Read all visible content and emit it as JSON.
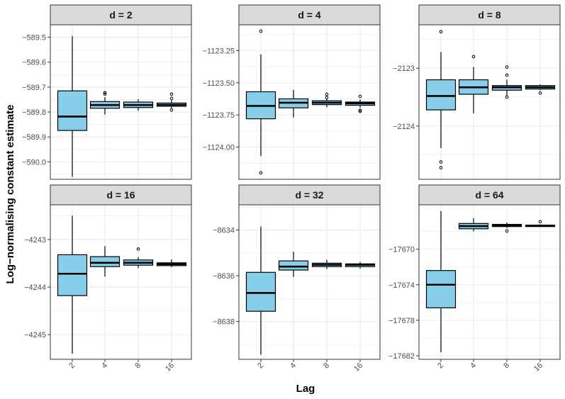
{
  "colors": {
    "box_fill": "#87CEEB",
    "strip_fill": "#D9D9D9",
    "grid": "#EBEBEB",
    "border": "#333333",
    "text": "#4D4D4D"
  },
  "chart_data": {
    "type": "boxplot",
    "facet_by": "d",
    "xlabel": "Lag",
    "ylabel": "Log−normalising constant estimate",
    "categories": [
      "2",
      "4",
      "8",
      "16"
    ],
    "panels": [
      {
        "title": "d = 2",
        "ylim": [
          -590.07,
          -589.45
        ],
        "yticks": [
          -589.5,
          -589.6,
          -589.7,
          -589.8,
          -589.9,
          -590.0
        ],
        "ytick_labels": [
          "−589.5",
          "−589.6",
          "−589.7",
          "−589.8",
          "−589.9",
          "−590.0"
        ],
        "boxes": [
          {
            "lag": "2",
            "min": -590.06,
            "q1": -589.874,
            "median": -589.818,
            "q3": -589.715,
            "max": -589.495,
            "outliers": []
          },
          {
            "lag": "4",
            "min": -589.81,
            "q1": -589.785,
            "median": -589.772,
            "q3": -589.758,
            "max": -589.74,
            "outliers": [
              -589.722,
              -589.728
            ]
          },
          {
            "lag": "8",
            "min": -589.795,
            "q1": -589.782,
            "median": -589.772,
            "q3": -589.76,
            "max": -589.748,
            "outliers": []
          },
          {
            "lag": "16",
            "min": -589.785,
            "q1": -589.777,
            "median": -589.771,
            "q3": -589.764,
            "max": -589.752,
            "outliers": [
              -589.728,
              -589.745,
              -589.792
            ]
          }
        ]
      },
      {
        "title": "d = 4",
        "ylim": [
          -1124.25,
          -1123.05
        ],
        "yticks": [
          -1123.25,
          -1123.5,
          -1123.75,
          -1124.0
        ],
        "ytick_labels": [
          "−1123.25",
          "−1123.50",
          "−1123.75",
          "−1124.00"
        ],
        "boxes": [
          {
            "lag": "2",
            "min": -1124.07,
            "q1": -1123.78,
            "median": -1123.68,
            "q3": -1123.57,
            "max": -1123.28,
            "outliers": [
              -1123.1,
              -1124.2
            ]
          },
          {
            "lag": "4",
            "min": -1123.77,
            "q1": -1123.695,
            "median": -1123.655,
            "q3": -1123.625,
            "max": -1123.555,
            "outliers": []
          },
          {
            "lag": "8",
            "min": -1123.69,
            "q1": -1123.67,
            "median": -1123.655,
            "q3": -1123.64,
            "max": -1123.625,
            "outliers": [
              -1123.59,
              -1123.615
            ]
          },
          {
            "lag": "16",
            "min": -1123.695,
            "q1": -1123.675,
            "median": -1123.66,
            "q3": -1123.65,
            "max": -1123.63,
            "outliers": [
              -1123.605,
              -1123.715,
              -1123.722
            ]
          }
        ]
      },
      {
        "title": "d = 8",
        "ylim": [
          -2124.92,
          -2122.25
        ],
        "yticks": [
          -2123,
          -2124
        ],
        "ytick_labels": [
          "−2123",
          "−2124"
        ],
        "boxes": [
          {
            "lag": "2",
            "min": -2124.38,
            "q1": -2123.72,
            "median": -2123.48,
            "q3": -2123.2,
            "max": -2122.72,
            "outliers": [
              -2122.37,
              -2124.62,
              -2124.72
            ]
          },
          {
            "lag": "4",
            "min": -2123.78,
            "q1": -2123.45,
            "median": -2123.33,
            "q3": -2123.2,
            "max": -2122.98,
            "outliers": [
              -2122.8
            ]
          },
          {
            "lag": "8",
            "min": -2123.48,
            "q1": -2123.38,
            "median": -2123.33,
            "q3": -2123.3,
            "max": -2123.2,
            "outliers": [
              -2122.98,
              -2123.12,
              -2123.5
            ]
          },
          {
            "lag": "16",
            "min": -2123.38,
            "q1": -2123.36,
            "median": -2123.33,
            "q3": -2123.3,
            "max": -2123.28,
            "outliers": [
              -2123.43
            ]
          }
        ]
      },
      {
        "title": "d = 16",
        "ylim": [
          -4245.52,
          -4242.27
        ],
        "yticks": [
          -4243,
          -4244,
          -4245
        ],
        "ytick_labels": [
          "−4243",
          "−4244",
          "−4245"
        ],
        "boxes": [
          {
            "lag": "2",
            "min": -4245.4,
            "q1": -4244.18,
            "median": -4243.72,
            "q3": -4243.32,
            "max": -4242.5,
            "outliers": []
          },
          {
            "lag": "4",
            "min": -4243.78,
            "q1": -4243.57,
            "median": -4243.49,
            "q3": -4243.36,
            "max": -4243.14,
            "outliers": []
          },
          {
            "lag": "8",
            "min": -4243.6,
            "q1": -4243.54,
            "median": -4243.49,
            "q3": -4243.43,
            "max": -4243.37,
            "outliers": [
              -4243.2
            ]
          },
          {
            "lag": "16",
            "min": -4243.58,
            "q1": -4243.55,
            "median": -4243.52,
            "q3": -4243.49,
            "max": -4243.42,
            "outliers": []
          }
        ]
      },
      {
        "title": "d = 32",
        "ylim": [
          -8639.65,
          -8632.9
        ],
        "yticks": [
          -8634,
          -8636,
          -8638
        ],
        "ytick_labels": [
          "−8634",
          "−8636",
          "−8638"
        ],
        "boxes": [
          {
            "lag": "2",
            "min": -8639.45,
            "q1": -8637.55,
            "median": -8636.75,
            "q3": -8635.85,
            "max": -8633.85,
            "outliers": []
          },
          {
            "lag": "4",
            "min": -8636.05,
            "q1": -8635.75,
            "median": -8635.6,
            "q3": -8635.35,
            "max": -8634.95,
            "outliers": []
          },
          {
            "lag": "8",
            "min": -8635.7,
            "q1": -8635.6,
            "median": -8635.52,
            "q3": -8635.45,
            "max": -8635.3,
            "outliers": []
          },
          {
            "lag": "16",
            "min": -8635.68,
            "q1": -8635.6,
            "median": -8635.52,
            "q3": -8635.48,
            "max": -8635.4,
            "outliers": []
          }
        ]
      },
      {
        "title": "d = 64",
        "ylim": [
          -17682.4,
          -17665.0
        ],
        "yticks": [
          -17670,
          -17674,
          -17678,
          -17682
        ],
        "ytick_labels": [
          "−17670",
          "−17674",
          "−17678",
          "−17682"
        ],
        "boxes": [
          {
            "lag": "2",
            "min": -17681.6,
            "q1": -17676.6,
            "median": -17674.0,
            "q3": -17672.4,
            "max": -17665.7,
            "outliers": []
          },
          {
            "lag": "4",
            "min": -17668.0,
            "q1": -17667.7,
            "median": -17667.4,
            "q3": -17667.1,
            "max": -17666.5,
            "outliers": []
          },
          {
            "lag": "8",
            "min": -17667.6,
            "q1": -17667.45,
            "median": -17667.35,
            "q3": -17667.2,
            "max": -17667.0,
            "outliers": [
              -17667.95
            ]
          },
          {
            "lag": "16",
            "min": -17667.5,
            "q1": -17667.45,
            "median": -17667.35,
            "q3": -17667.3,
            "max": -17667.2,
            "outliers": [
              -17666.9
            ]
          }
        ]
      }
    ]
  }
}
